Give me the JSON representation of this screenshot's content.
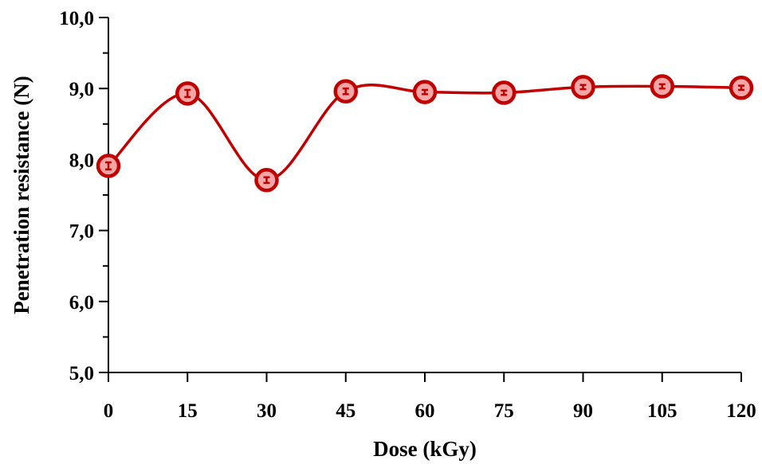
{
  "chart_data": {
    "type": "line",
    "title": "",
    "xlabel": "Dose (kGy)",
    "ylabel": "Penetration resistance (N)",
    "x": [
      0,
      15,
      30,
      45,
      60,
      75,
      90,
      105,
      120
    ],
    "x_tick_labels": [
      "0",
      "15",
      "30",
      "45",
      "60",
      "75",
      "90",
      "105",
      "120"
    ],
    "y_tick_labels": [
      "5,0",
      "6,0",
      "7,0",
      "8,0",
      "9,0",
      "10,0"
    ],
    "y_ticks": [
      5,
      6,
      7,
      8,
      9,
      10
    ],
    "xlim": [
      0,
      120
    ],
    "ylim": [
      5,
      10
    ],
    "grid": false,
    "legend": "none",
    "smooth": true,
    "series": [
      {
        "values": [
          7.91,
          8.93,
          7.71,
          8.96,
          8.95,
          8.94,
          9.02,
          9.03,
          9.01
        ],
        "errors": [
          0.05,
          0.05,
          0.04,
          0.04,
          0.03,
          0.03,
          0.03,
          0.03,
          0.03
        ],
        "line_color": "#c00000",
        "marker_edge_color": "#c00000",
        "marker_fill_color": "#f4a6a6"
      }
    ]
  }
}
